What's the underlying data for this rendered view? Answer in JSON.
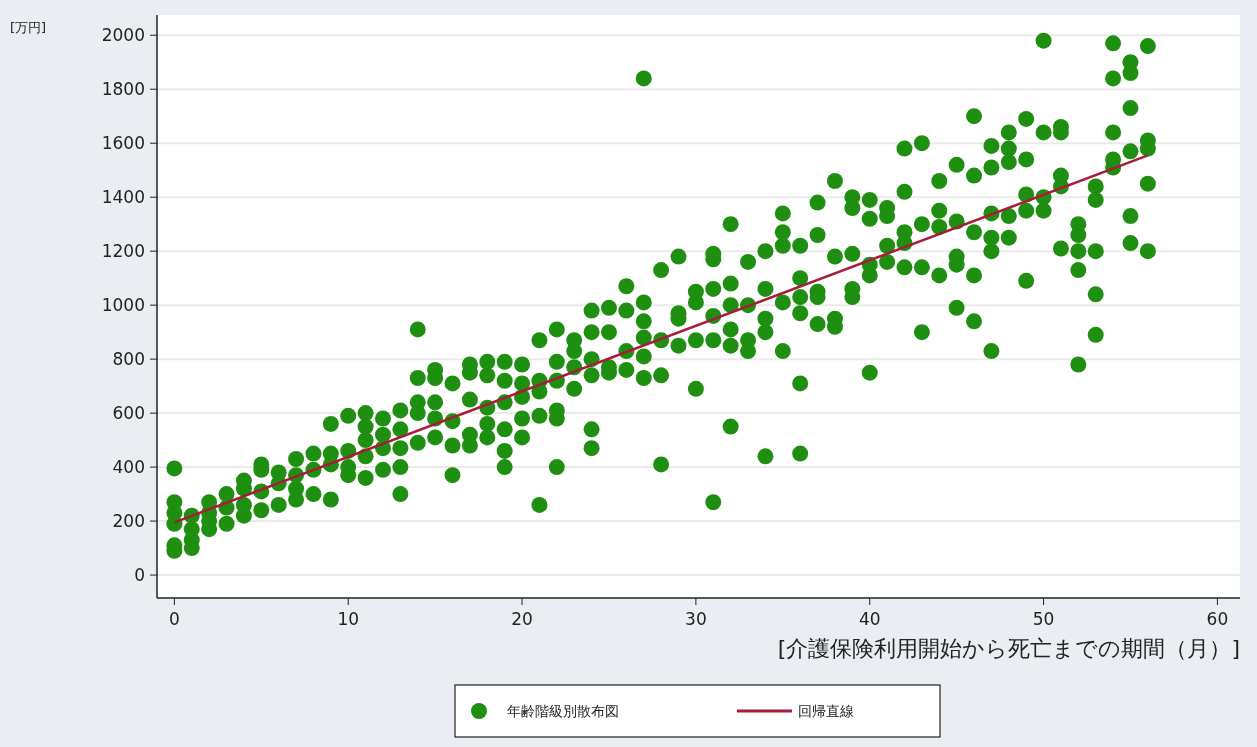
{
  "chart_data": {
    "type": "scatter",
    "xlabel": "[介護保険利用開始から死亡までの期間（月）]",
    "ylabel": "[万円]",
    "xlim": [
      -1,
      61.3
    ],
    "xticks": [
      0,
      10,
      20,
      30,
      40,
      50,
      60
    ],
    "ylim": [
      -85,
      2075
    ],
    "yticks": [
      0,
      200,
      400,
      600,
      800,
      1000,
      1200,
      1400,
      1600,
      1800,
      2000
    ],
    "grid": "y",
    "legend": "bottom",
    "series": [
      {
        "name": "年齢階級別散布図",
        "color": "#1f8f12",
        "marker": "circle",
        "x": [
          0,
          0,
          0,
          0,
          0,
          0,
          1,
          1,
          1,
          1,
          2,
          2,
          2,
          2,
          3,
          3,
          3,
          4,
          4,
          4,
          4,
          5,
          5,
          5,
          5,
          6,
          6,
          6,
          7,
          7,
          7,
          7,
          8,
          8,
          8,
          9,
          9,
          9,
          9,
          10,
          10,
          10,
          10,
          11,
          11,
          11,
          11,
          11,
          12,
          12,
          12,
          12,
          13,
          13,
          13,
          13,
          13,
          14,
          14,
          14,
          14,
          14,
          15,
          15,
          15,
          15,
          15,
          16,
          16,
          16,
          16,
          17,
          17,
          17,
          17,
          17,
          18,
          18,
          18,
          18,
          18,
          19,
          19,
          19,
          19,
          19,
          19,
          20,
          20,
          20,
          20,
          20,
          21,
          21,
          21,
          21,
          21,
          22,
          22,
          22,
          22,
          22,
          22,
          23,
          23,
          23,
          23,
          24,
          24,
          24,
          24,
          24,
          24,
          25,
          25,
          25,
          25,
          26,
          26,
          26,
          26,
          27,
          27,
          27,
          27,
          27,
          27,
          28,
          28,
          28,
          28,
          29,
          29,
          29,
          29,
          30,
          30,
          30,
          30,
          31,
          31,
          31,
          31,
          31,
          31,
          32,
          32,
          32,
          32,
          32,
          32,
          33,
          33,
          33,
          33,
          34,
          34,
          34,
          34,
          34,
          35,
          35,
          35,
          35,
          35,
          36,
          36,
          36,
          36,
          36,
          36,
          37,
          37,
          37,
          37,
          37,
          38,
          38,
          38,
          38,
          39,
          39,
          39,
          39,
          39,
          40,
          40,
          40,
          40,
          40,
          41,
          41,
          41,
          41,
          42,
          42,
          42,
          42,
          42,
          43,
          43,
          43,
          43,
          44,
          44,
          44,
          44,
          45,
          45,
          45,
          45,
          45,
          46,
          46,
          46,
          46,
          46,
          47,
          47,
          47,
          47,
          47,
          47,
          48,
          48,
          48,
          48,
          48,
          49,
          49,
          49,
          49,
          49,
          50,
          50,
          50,
          50,
          51,
          51,
          51,
          51,
          51,
          52,
          52,
          52,
          52,
          52,
          53,
          53,
          53,
          53,
          53,
          54,
          54,
          54,
          54,
          54,
          55,
          55,
          55,
          55,
          55,
          55,
          56,
          56,
          56,
          56,
          56
        ],
        "values": [
          395,
          270,
          230,
          190,
          110,
          90,
          220,
          170,
          130,
          100,
          270,
          230,
          200,
          170,
          300,
          250,
          190,
          350,
          320,
          260,
          220,
          410,
          390,
          310,
          240,
          380,
          340,
          260,
          430,
          370,
          320,
          280,
          450,
          390,
          300,
          560,
          450,
          410,
          280,
          590,
          460,
          400,
          370,
          600,
          550,
          500,
          440,
          360,
          580,
          520,
          470,
          390,
          610,
          540,
          470,
          400,
          300,
          910,
          730,
          640,
          600,
          490,
          760,
          730,
          640,
          580,
          510,
          710,
          570,
          480,
          370,
          780,
          750,
          650,
          520,
          480,
          790,
          740,
          620,
          560,
          510,
          790,
          720,
          640,
          540,
          460,
          400,
          780,
          710,
          660,
          580,
          510,
          870,
          720,
          680,
          590,
          260,
          910,
          790,
          720,
          610,
          580,
          400,
          870,
          830,
          770,
          690,
          980,
          900,
          800,
          740,
          540,
          470,
          990,
          900,
          770,
          750,
          1070,
          980,
          830,
          760,
          1840,
          1010,
          940,
          880,
          810,
          730,
          1130,
          870,
          740,
          410,
          1180,
          970,
          950,
          850,
          1050,
          1010,
          870,
          690,
          1190,
          1170,
          1060,
          960,
          870,
          270,
          1300,
          1080,
          1000,
          910,
          850,
          550,
          1160,
          1000,
          870,
          830,
          1200,
          1060,
          950,
          900,
          440,
          1340,
          1270,
          1220,
          1010,
          830,
          1220,
          1100,
          1030,
          970,
          710,
          450,
          1380,
          1260,
          1050,
          1030,
          930,
          1460,
          1180,
          950,
          920,
          1400,
          1360,
          1190,
          1060,
          1030,
          1390,
          1320,
          1150,
          1110,
          750,
          1360,
          1330,
          1220,
          1160,
          1580,
          1420,
          1270,
          1230,
          1140,
          1600,
          1300,
          1140,
          900,
          1460,
          1350,
          1290,
          1110,
          1520,
          1310,
          1180,
          1150,
          990,
          1700,
          1480,
          1270,
          1110,
          940,
          1590,
          1510,
          1340,
          1250,
          1200,
          830,
          1640,
          1580,
          1530,
          1330,
          1250,
          1690,
          1540,
          1410,
          1350,
          1090,
          1980,
          1640,
          1400,
          1350,
          1660,
          1640,
          1480,
          1440,
          1210,
          1300,
          1260,
          1200,
          1130,
          780,
          1440,
          1390,
          1200,
          1040,
          890,
          1970,
          1840,
          1640,
          1540,
          1510,
          1900,
          1860,
          1730,
          1570,
          1330,
          1230,
          1960,
          1610,
          1580,
          1450,
          1200
        ]
      },
      {
        "name": "回帰直線",
        "type": "line",
        "color": "#a51d3a",
        "x": [
          0,
          56
        ],
        "values": [
          195,
          1555
        ],
        "marker": "none",
        "line_style": "solid"
      }
    ]
  }
}
